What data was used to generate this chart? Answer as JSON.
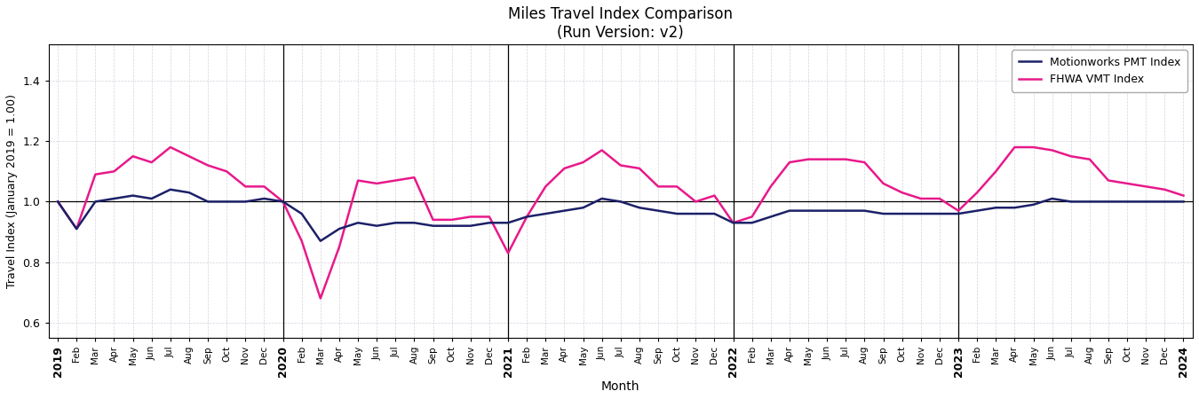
{
  "title": "Miles Travel Index Comparison\n(Run Version: v2)",
  "xlabel": "Month",
  "ylabel": "Travel Index (January 2019 = 1.00)",
  "ylim": [
    0.55,
    1.52
  ],
  "yticks": [
    0.6,
    0.8,
    1.0,
    1.2,
    1.4
  ],
  "hline_y": 1.0,
  "vline_positions": [
    12,
    24,
    36,
    48
  ],
  "pmt_color": "#1c2068",
  "fhwa_color": "#e8198b",
  "pmt_label": "Motionworks PMT Index",
  "fhwa_label": "FHWA VMT Index",
  "bg_color": "#ffffff",
  "ax_bg_color": "#ffffff",
  "pmt_data": [
    1.0,
    0.91,
    1.0,
    1.01,
    1.02,
    1.01,
    1.04,
    1.03,
    1.0,
    1.0,
    1.0,
    1.01,
    1.0,
    0.96,
    0.87,
    0.91,
    0.93,
    0.92,
    0.93,
    0.93,
    0.92,
    0.92,
    0.92,
    0.93,
    0.93,
    0.95,
    0.96,
    0.97,
    0.98,
    1.01,
    1.0,
    0.98,
    0.97,
    0.96,
    0.96,
    0.96,
    0.93,
    0.93,
    0.95,
    0.97,
    0.97,
    0.97,
    0.97,
    0.97,
    0.96,
    0.96,
    0.96,
    0.96,
    0.96,
    0.97,
    0.98,
    0.98,
    0.99,
    1.01,
    1.0,
    1.0,
    1.0,
    1.0,
    1.0,
    1.0,
    1.0
  ],
  "fhwa_data": [
    1.0,
    0.91,
    1.09,
    1.1,
    1.15,
    1.13,
    1.18,
    1.15,
    1.12,
    1.1,
    1.05,
    1.05,
    1.0,
    0.87,
    0.68,
    0.85,
    1.07,
    1.06,
    1.07,
    1.08,
    0.94,
    0.94,
    0.95,
    0.95,
    0.83,
    0.95,
    1.05,
    1.11,
    1.13,
    1.17,
    1.12,
    1.11,
    1.05,
    1.05,
    1.0,
    1.02,
    0.93,
    0.95,
    1.05,
    1.13,
    1.14,
    1.14,
    1.14,
    1.13,
    1.06,
    1.03,
    1.01,
    1.01,
    0.97,
    1.03,
    1.1,
    1.18,
    1.18,
    1.17,
    1.15,
    1.14,
    1.07,
    1.06,
    1.05,
    1.04,
    1.02
  ],
  "month_labels": [
    "2019",
    "Feb",
    "Mar",
    "Apr",
    "May",
    "Jun",
    "Jul",
    "Aug",
    "Sep",
    "Oct",
    "Nov",
    "Dec",
    "2020",
    "Feb",
    "Mar",
    "Apr",
    "May",
    "Jun",
    "Jul",
    "Aug",
    "Sep",
    "Oct",
    "Nov",
    "Dec",
    "2021",
    "Feb",
    "Mar",
    "Apr",
    "May",
    "Jun",
    "Jul",
    "Aug",
    "Sep",
    "Oct",
    "Nov",
    "Dec",
    "2022",
    "Feb",
    "Mar",
    "Apr",
    "May",
    "Jun",
    "Jul",
    "Aug",
    "Sep",
    "Oct",
    "Nov",
    "Dec",
    "2023",
    "Feb",
    "Mar",
    "Apr",
    "May",
    "Jun",
    "Jul",
    "Aug",
    "Sep",
    "Oct",
    "Nov",
    "Dec",
    "2024"
  ],
  "bold_ticks": [
    0,
    12,
    24,
    36,
    48,
    60
  ],
  "grid_color": "#c8c8d8",
  "grid_alpha": 0.8,
  "linewidth": 1.8
}
